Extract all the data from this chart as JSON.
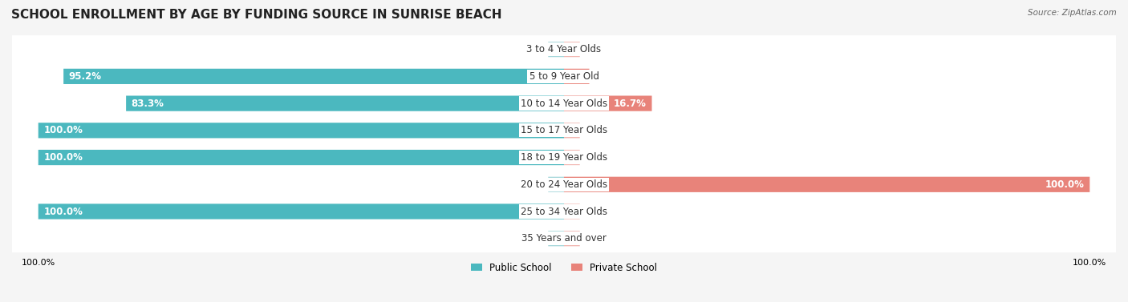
{
  "title": "SCHOOL ENROLLMENT BY AGE BY FUNDING SOURCE IN SUNRISE BEACH",
  "source": "Source: ZipAtlas.com",
  "categories": [
    "3 to 4 Year Olds",
    "5 to 9 Year Old",
    "10 to 14 Year Olds",
    "15 to 17 Year Olds",
    "18 to 19 Year Olds",
    "20 to 24 Year Olds",
    "25 to 34 Year Olds",
    "35 Years and over"
  ],
  "public_values": [
    0.0,
    95.2,
    83.3,
    100.0,
    100.0,
    0.0,
    100.0,
    0.0
  ],
  "private_values": [
    0.0,
    4.8,
    16.7,
    0.0,
    0.0,
    100.0,
    0.0,
    0.0
  ],
  "public_color": "#4BB8BF",
  "private_color": "#E8837A",
  "public_color_light": "#A8D8DB",
  "private_color_light": "#F2B8B3",
  "bg_color": "#f5f5f5",
  "row_bg": "#ffffff",
  "title_fontsize": 11,
  "label_fontsize": 8.5,
  "bar_height": 0.55,
  "legend_public": "Public School",
  "legend_private": "Private School"
}
